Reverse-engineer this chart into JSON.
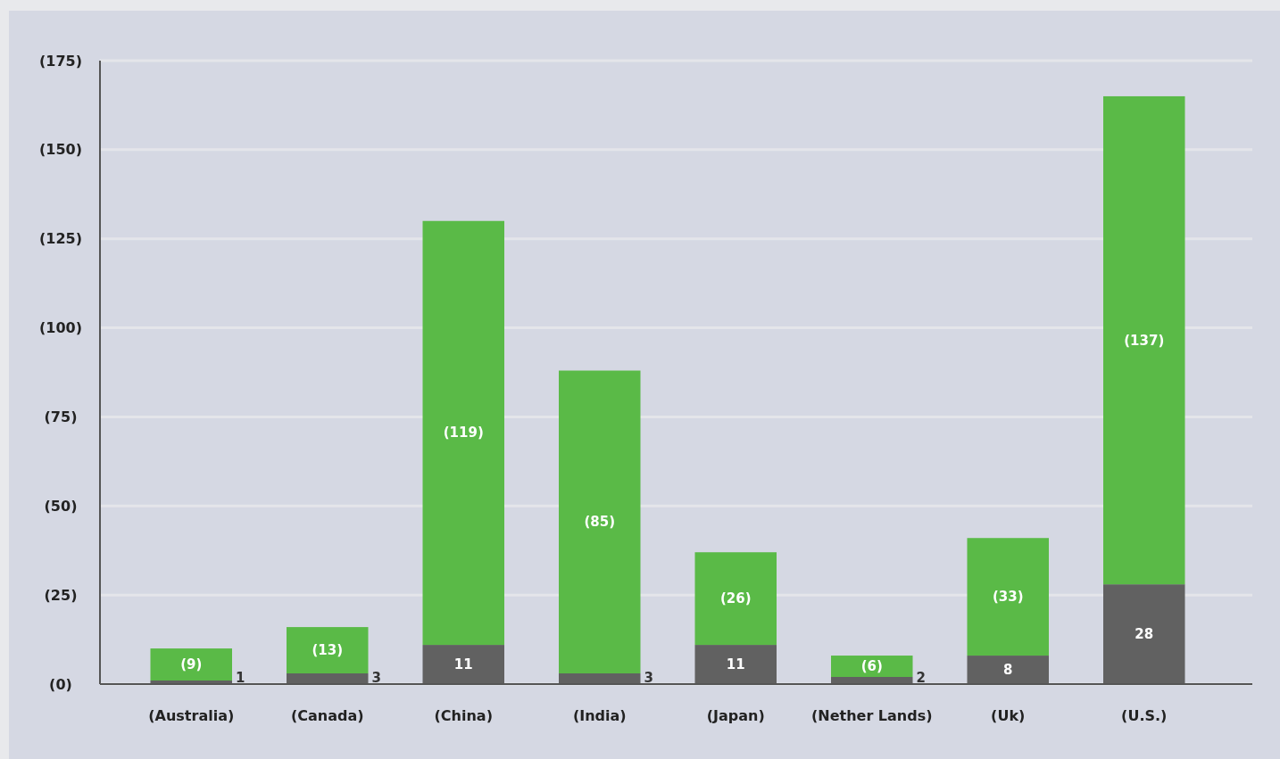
{
  "chart_data": {
    "type": "bar",
    "stacked": true,
    "categories": [
      "(Australia)",
      "(Canada)",
      "(China)",
      "(India)",
      "(Japan)",
      "(Nether Lands)",
      "(Uk)",
      "(U.S.)"
    ],
    "series": [
      {
        "color": "#616161",
        "values": [
          1,
          3,
          11,
          3,
          11,
          2,
          8,
          28
        ],
        "value_labels": [
          "1",
          "3",
          "11",
          "3",
          "11",
          "2",
          "8",
          "28"
        ]
      },
      {
        "color": "#5aba47",
        "values": [
          9,
          13,
          119,
          85,
          26,
          6,
          33,
          137
        ],
        "value_labels": [
          "(9)",
          "(13)",
          "(119)",
          "(85)",
          "(26)",
          "(6)",
          "(33)",
          "(137)"
        ]
      }
    ],
    "ylim": [
      0,
      175
    ],
    "yticks": [
      {
        "value": 0,
        "label": "(0)"
      },
      {
        "value": 25,
        "label": "(25)"
      },
      {
        "value": 50,
        "label": "(50)"
      },
      {
        "value": 75,
        "label": "(75)"
      },
      {
        "value": 100,
        "label": "(100)"
      },
      {
        "value": 125,
        "label": "(125)"
      },
      {
        "value": 150,
        "label": "(150)"
      },
      {
        "value": 175,
        "label": "(175)"
      }
    ],
    "grid": "y"
  }
}
